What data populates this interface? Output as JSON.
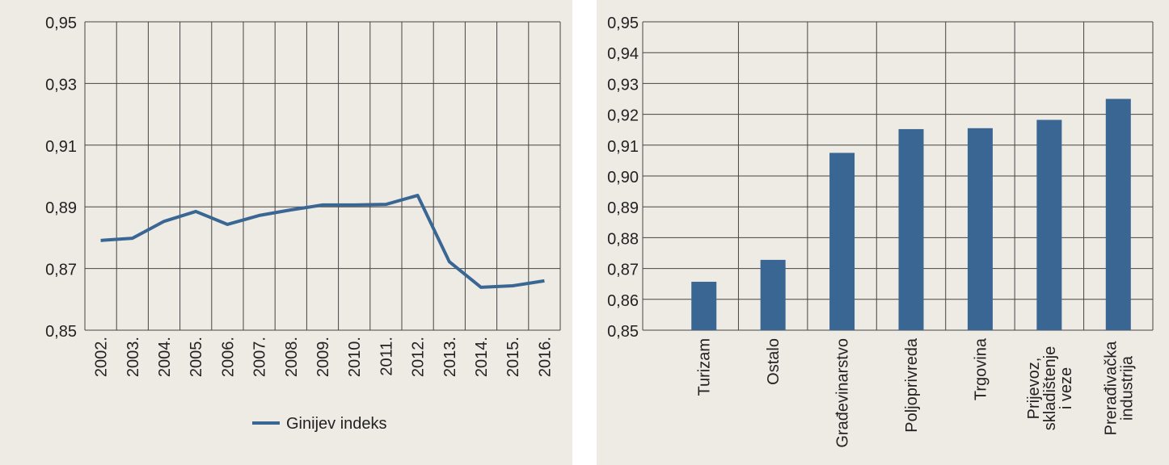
{
  "chart_data": [
    {
      "type": "line",
      "title": "",
      "xlabel": "",
      "ylabel": "",
      "ylim": [
        0.85,
        0.95
      ],
      "yticks": [
        "0,85",
        "0,87",
        "0,89",
        "0,91",
        "0,93",
        "0,95"
      ],
      "ytick_values": [
        0.85,
        0.87,
        0.89,
        0.91,
        0.93,
        0.95
      ],
      "categories": [
        "2002.",
        "2003.",
        "2004.",
        "2005.",
        "2006.",
        "2007.",
        "2008.",
        "2009.",
        "2010.",
        "2011.",
        "2012.",
        "2013.",
        "2014.",
        "2015.",
        "2016."
      ],
      "series": [
        {
          "name": "Ginijev indeks",
          "color": "#3a6694",
          "values": [
            0.8791,
            0.8798,
            0.8853,
            0.8885,
            0.8843,
            0.8872,
            0.889,
            0.8906,
            0.8906,
            0.8908,
            0.8937,
            0.8722,
            0.8639,
            0.8644,
            0.866
          ]
        }
      ],
      "grid": true,
      "legend": "bottom"
    },
    {
      "type": "bar",
      "title": "",
      "xlabel": "",
      "ylabel": "",
      "ylim": [
        0.85,
        0.95
      ],
      "yticks": [
        "0,85",
        "0,86",
        "0,87",
        "0,88",
        "0,89",
        "0,90",
        "0,91",
        "0,92",
        "0,93",
        "0,94",
        "0,95"
      ],
      "ytick_values": [
        0.85,
        0.86,
        0.87,
        0.88,
        0.89,
        0.9,
        0.91,
        0.92,
        0.93,
        0.94,
        0.95
      ],
      "categories": [
        [
          "Turizam"
        ],
        [
          "Ostalo"
        ],
        [
          "Građevinarstvo"
        ],
        [
          "Poljoprivreda"
        ],
        [
          "Trgovina"
        ],
        [
          "Prijevoz,",
          "skladištenje",
          "i veze"
        ],
        [
          "Prerađivačka",
          "industrija"
        ]
      ],
      "values": [
        0.8657,
        0.8728,
        0.9075,
        0.9152,
        0.9155,
        0.9182,
        0.925
      ],
      "color": "#3a6694",
      "grid": true
    }
  ]
}
